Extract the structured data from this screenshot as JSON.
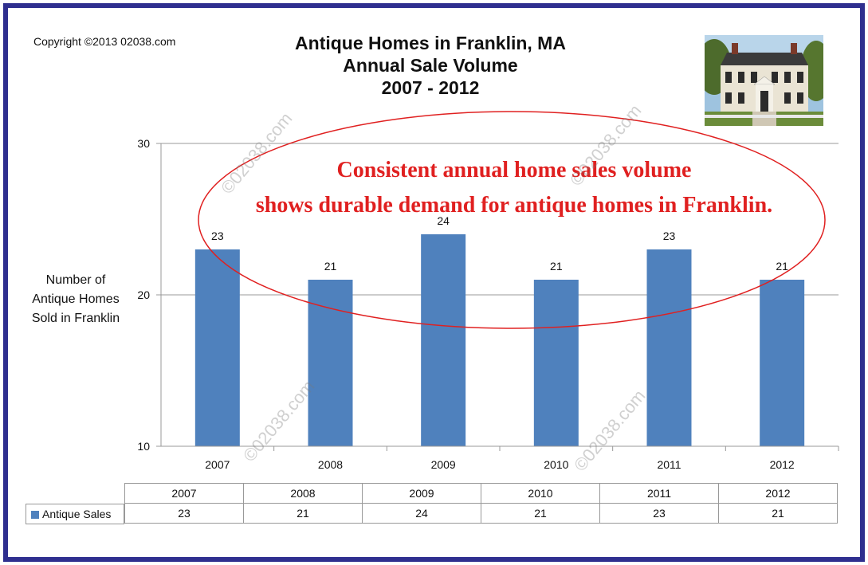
{
  "copyright": "Copyright ©2013 02038.com",
  "title_lines": [
    "Antique Homes in Franklin, MA",
    "Annual Sale Volume",
    "2007 - 2012"
  ],
  "annotation_lines": [
    "Consistent annual home sales volume",
    "shows durable demand for antique homes in Franklin."
  ],
  "y_axis_label_lines": [
    "Number of",
    "Antique Homes",
    "Sold in Franklin"
  ],
  "watermark_text": "©02038.com",
  "colors": {
    "bar": "#4f81bd",
    "annotation": "#e02020",
    "frame": "#2f2f8f",
    "grid": "#999999"
  },
  "chart_data": {
    "type": "bar",
    "title": "Antique Homes in Franklin, MA Annual Sale Volume 2007 - 2012",
    "categories": [
      "2007",
      "2008",
      "2009",
      "2010",
      "2011",
      "2012"
    ],
    "series": [
      {
        "name": "Antique Sales",
        "values": [
          23,
          21,
          24,
          21,
          23,
          21
        ]
      }
    ],
    "ylabel": "Number of Antique Homes Sold in Franklin",
    "ylim": [
      10,
      30
    ],
    "yticks": [
      10,
      20,
      30
    ],
    "grid": true,
    "data_labels": true,
    "data_table": true
  }
}
